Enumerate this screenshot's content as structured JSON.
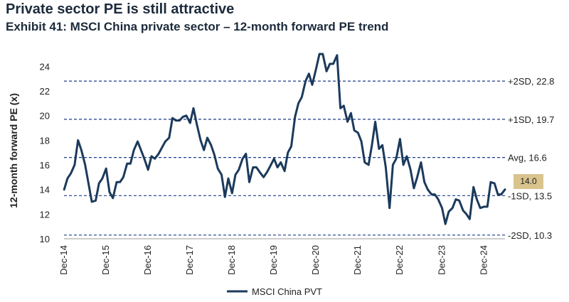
{
  "title": "Private sector PE is still attractive",
  "subtitle": "Exhibit 41: MSCI China private sector – 12-month forward PE trend",
  "chart_data": {
    "type": "line",
    "ylabel": "12-month forward PE (x)",
    "xlabel": "",
    "ylim": [
      10,
      25
    ],
    "yticks": [
      10,
      12,
      14,
      16,
      18,
      20,
      22,
      24
    ],
    "x_start": 2014.917,
    "x_end": 2025.42,
    "xtick_labels": [
      {
        "label": "Dec-14",
        "x": 2014.917
      },
      {
        "label": "Dec-15",
        "x": 2015.917
      },
      {
        "label": "Dec-16",
        "x": 2016.917
      },
      {
        "label": "Dec-17",
        "x": 2017.917
      },
      {
        "label": "Dec-18",
        "x": 2018.917
      },
      {
        "label": "Dec-19",
        "x": 2019.917
      },
      {
        "label": "Dec-20",
        "x": 2020.917
      },
      {
        "label": "Dec-21",
        "x": 2021.917
      },
      {
        "label": "Dec-22",
        "x": 2022.917
      },
      {
        "label": "Dec-23",
        "x": 2023.917
      },
      {
        "label": "Dec-24",
        "x": 2024.917
      }
    ],
    "bands": [
      {
        "name": "+2SD",
        "value": 22.8,
        "label": "+2SD, 22.8"
      },
      {
        "name": "+1SD",
        "value": 19.7,
        "label": "+1SD, 19.7"
      },
      {
        "name": "Avg",
        "value": 16.6,
        "label": "Avg, 16.6"
      },
      {
        "name": "-1SD",
        "value": 13.5,
        "label": "-1SD, 13.5"
      },
      {
        "name": "-2SD",
        "value": 10.3,
        "label": "-2SD, 10.3"
      }
    ],
    "latest_value": "14.0",
    "series": [
      {
        "name": "MSCI China PVT",
        "color": "#1b3a5c",
        "points": [
          [
            2014.92,
            14.0
          ],
          [
            2015.0,
            14.9
          ],
          [
            2015.08,
            15.3
          ],
          [
            2015.17,
            16.0
          ],
          [
            2015.25,
            18.0
          ],
          [
            2015.33,
            17.2
          ],
          [
            2015.42,
            16.0
          ],
          [
            2015.5,
            14.5
          ],
          [
            2015.58,
            13.0
          ],
          [
            2015.67,
            13.1
          ],
          [
            2015.75,
            14.5
          ],
          [
            2015.83,
            14.9
          ],
          [
            2015.92,
            15.7
          ],
          [
            2016.0,
            13.8
          ],
          [
            2016.08,
            13.3
          ],
          [
            2016.17,
            14.6
          ],
          [
            2016.25,
            14.6
          ],
          [
            2016.33,
            15.0
          ],
          [
            2016.42,
            16.1
          ],
          [
            2016.5,
            16.1
          ],
          [
            2016.58,
            17.2
          ],
          [
            2016.67,
            17.9
          ],
          [
            2016.75,
            17.2
          ],
          [
            2016.83,
            16.5
          ],
          [
            2016.92,
            15.6
          ],
          [
            2017.0,
            16.7
          ],
          [
            2017.08,
            16.5
          ],
          [
            2017.17,
            16.9
          ],
          [
            2017.25,
            17.4
          ],
          [
            2017.33,
            17.9
          ],
          [
            2017.42,
            18.2
          ],
          [
            2017.5,
            19.8
          ],
          [
            2017.58,
            19.6
          ],
          [
            2017.67,
            19.6
          ],
          [
            2017.75,
            19.9
          ],
          [
            2017.83,
            20.0
          ],
          [
            2017.92,
            19.4
          ],
          [
            2018.0,
            20.6
          ],
          [
            2018.08,
            19.3
          ],
          [
            2018.17,
            18.0
          ],
          [
            2018.25,
            17.2
          ],
          [
            2018.33,
            18.2
          ],
          [
            2018.42,
            17.6
          ],
          [
            2018.5,
            16.8
          ],
          [
            2018.58,
            15.7
          ],
          [
            2018.67,
            15.2
          ],
          [
            2018.75,
            13.4
          ],
          [
            2018.83,
            14.9
          ],
          [
            2018.92,
            13.7
          ],
          [
            2019.0,
            15.2
          ],
          [
            2019.08,
            15.6
          ],
          [
            2019.17,
            16.5
          ],
          [
            2019.25,
            16.9
          ],
          [
            2019.33,
            14.6
          ],
          [
            2019.42,
            15.8
          ],
          [
            2019.5,
            15.8
          ],
          [
            2019.58,
            15.4
          ],
          [
            2019.67,
            15.0
          ],
          [
            2019.75,
            15.4
          ],
          [
            2019.83,
            15.9
          ],
          [
            2019.92,
            16.5
          ],
          [
            2020.0,
            15.8
          ],
          [
            2020.08,
            16.2
          ],
          [
            2020.17,
            15.5
          ],
          [
            2020.25,
            17.0
          ],
          [
            2020.33,
            17.5
          ],
          [
            2020.42,
            19.9
          ],
          [
            2020.5,
            21.0
          ],
          [
            2020.58,
            21.5
          ],
          [
            2020.67,
            22.8
          ],
          [
            2020.75,
            23.4
          ],
          [
            2020.83,
            22.5
          ],
          [
            2020.92,
            23.8
          ],
          [
            2021.0,
            25.0
          ],
          [
            2021.08,
            25.0
          ],
          [
            2021.17,
            23.6
          ],
          [
            2021.25,
            24.2
          ],
          [
            2021.33,
            24.2
          ],
          [
            2021.42,
            24.9
          ],
          [
            2021.5,
            20.6
          ],
          [
            2021.58,
            20.8
          ],
          [
            2021.67,
            19.5
          ],
          [
            2021.75,
            20.2
          ],
          [
            2021.83,
            18.8
          ],
          [
            2021.92,
            18.6
          ],
          [
            2022.0,
            17.9
          ],
          [
            2022.08,
            16.2
          ],
          [
            2022.17,
            16.0
          ],
          [
            2022.25,
            17.6
          ],
          [
            2022.33,
            19.5
          ],
          [
            2022.42,
            17.3
          ],
          [
            2022.5,
            17.6
          ],
          [
            2022.58,
            15.8
          ],
          [
            2022.67,
            12.5
          ],
          [
            2022.75,
            16.0
          ],
          [
            2022.83,
            16.5
          ],
          [
            2022.92,
            18.1
          ],
          [
            2023.0,
            16.0
          ],
          [
            2023.08,
            16.7
          ],
          [
            2023.17,
            15.6
          ],
          [
            2023.25,
            14.1
          ],
          [
            2023.33,
            15.0
          ],
          [
            2023.42,
            16.2
          ],
          [
            2023.5,
            14.6
          ],
          [
            2023.58,
            14.0
          ],
          [
            2023.67,
            13.6
          ],
          [
            2023.75,
            13.6
          ],
          [
            2023.83,
            13.2
          ],
          [
            2023.92,
            12.5
          ],
          [
            2024.0,
            11.2
          ],
          [
            2024.08,
            12.2
          ],
          [
            2024.17,
            12.5
          ],
          [
            2024.25,
            13.2
          ],
          [
            2024.33,
            13.1
          ],
          [
            2024.42,
            12.3
          ],
          [
            2024.5,
            12.0
          ],
          [
            2024.58,
            11.6
          ],
          [
            2024.67,
            14.2
          ],
          [
            2024.75,
            13.2
          ],
          [
            2024.83,
            12.5
          ],
          [
            2024.92,
            12.6
          ],
          [
            2025.0,
            12.6
          ],
          [
            2025.08,
            14.6
          ],
          [
            2025.17,
            14.5
          ],
          [
            2025.25,
            13.6
          ],
          [
            2025.33,
            13.6
          ],
          [
            2025.42,
            14.0
          ]
        ]
      }
    ],
    "legend": {
      "position": "bottom-center",
      "label": "MSCI China PVT"
    }
  }
}
